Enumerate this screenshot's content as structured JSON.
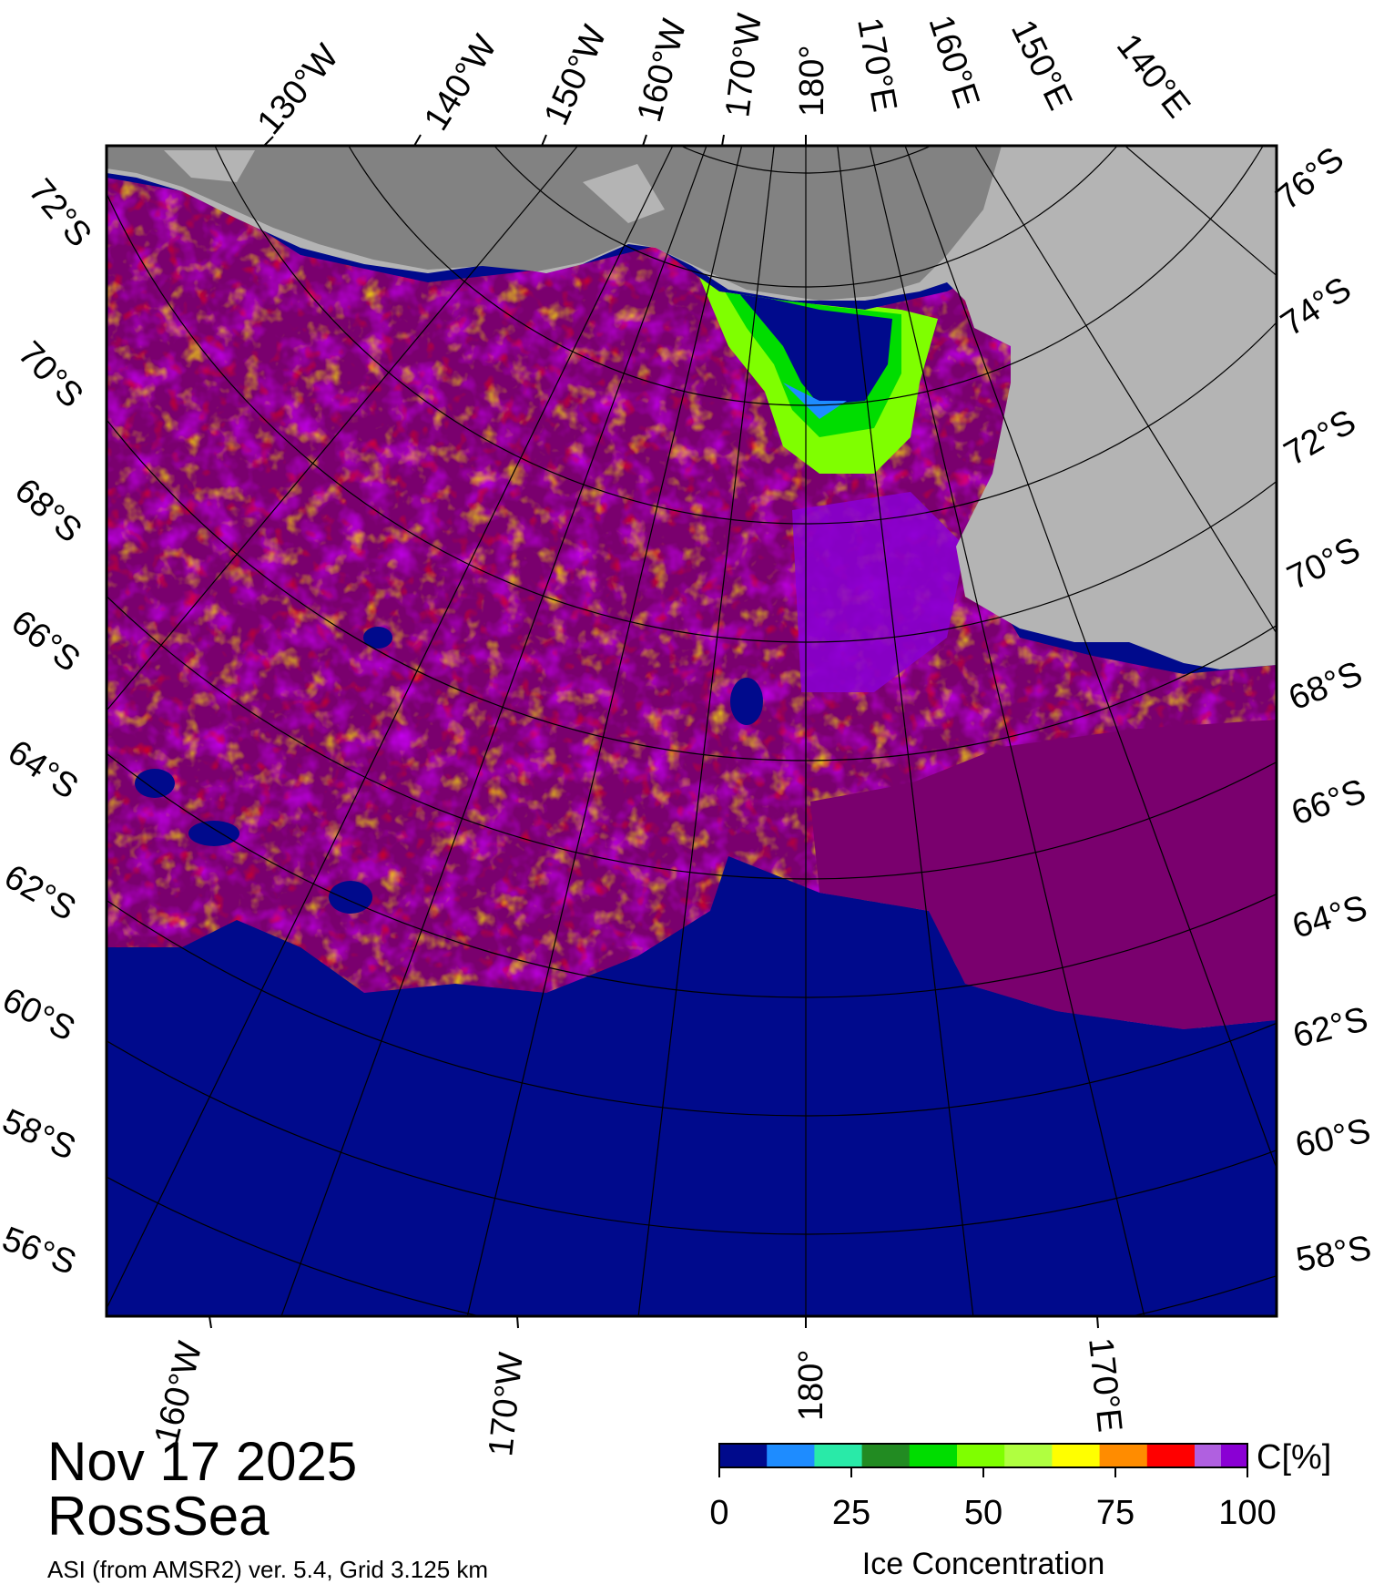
{
  "date": "Nov 17 2025",
  "region": "RossSea",
  "product_note": "ASI (from AMSR2) ver. 5.4,  Grid 3.125 km",
  "top_lon_labels": [
    "130°W",
    "140°W",
    "150°W",
    "160°W",
    "170°W",
    "180°",
    "170°E",
    "160°E",
    "150°E",
    "140°E"
  ],
  "left_lat_labels": [
    "72°S",
    "70°S",
    "68°S",
    "66°S",
    "64°S",
    "62°S",
    "60°S",
    "58°S",
    "56°S"
  ],
  "right_lat_labels": [
    "76°S",
    "74°S",
    "72°S",
    "70°S",
    "68°S",
    "66°S",
    "64°S",
    "62°S",
    "60°S",
    "58°S"
  ],
  "bottom_lon_labels": [
    "160°W",
    "170°W",
    "180°",
    "170°E"
  ],
  "colorbar": {
    "title": "Ice Concentration",
    "unit": "C[%]",
    "ticks": [
      "0",
      "25",
      "50",
      "75",
      "100"
    ],
    "colors": [
      "#000a8c",
      "#1e8cff",
      "#29eaa8",
      "#228b22",
      "#00dd00",
      "#7fff00",
      "#b0ff40",
      "#ffff00",
      "#ff8c00",
      "#ff0000",
      "#b060e0",
      "#8a00d4"
    ]
  },
  "colors": {
    "ocean": "#000a8c",
    "land_light": "#b4b4b4",
    "land_dark": "#828282",
    "ice_dense": "#7a006e",
    "ice_high": "#8a00d4"
  }
}
